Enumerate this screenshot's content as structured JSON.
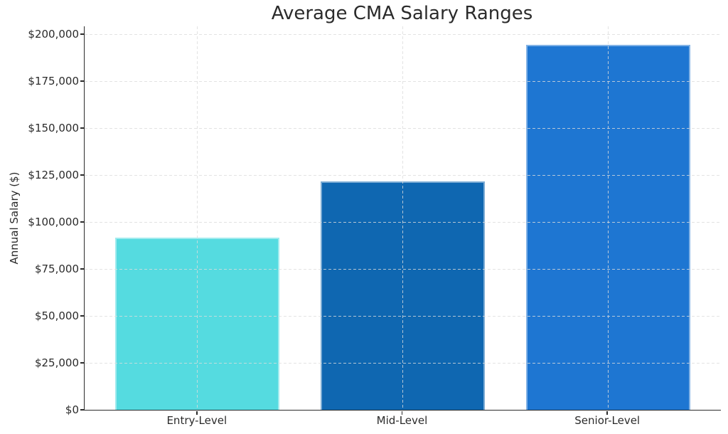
{
  "figure": {
    "background": "#ffffff",
    "text_color": "#2b2b2b",
    "spine_color": "#2b2b2b"
  },
  "chart_data": {
    "type": "bar",
    "title": "Average CMA Salary Ranges",
    "xlabel": "",
    "ylabel": "Annual Salary ($)",
    "categories": [
      "Entry-Level",
      "Mid-Level",
      "Senior-Level"
    ],
    "values": [
      91500,
      121500,
      194500
    ],
    "bar_colors": [
      "#55dbe0",
      "#0f67b1",
      "#1e76d2"
    ],
    "ylim": [
      0,
      204200
    ],
    "yticks": [
      {
        "value": 0,
        "label": "$0"
      },
      {
        "value": 25000,
        "label": "$25,000"
      },
      {
        "value": 50000,
        "label": "$50,000"
      },
      {
        "value": 75000,
        "label": "$75,000"
      },
      {
        "value": 100000,
        "label": "$100,000"
      },
      {
        "value": 125000,
        "label": "$125,000"
      },
      {
        "value": 150000,
        "label": "$150,000"
      },
      {
        "value": 175000,
        "label": "$175,000"
      },
      {
        "value": 200000,
        "label": "$200,000"
      }
    ],
    "grid": {
      "show": true,
      "style": "dashed",
      "color": "#dcdcdc",
      "horizontal": true,
      "vertical": true,
      "drawn_above_bars": true
    },
    "legend": null
  }
}
